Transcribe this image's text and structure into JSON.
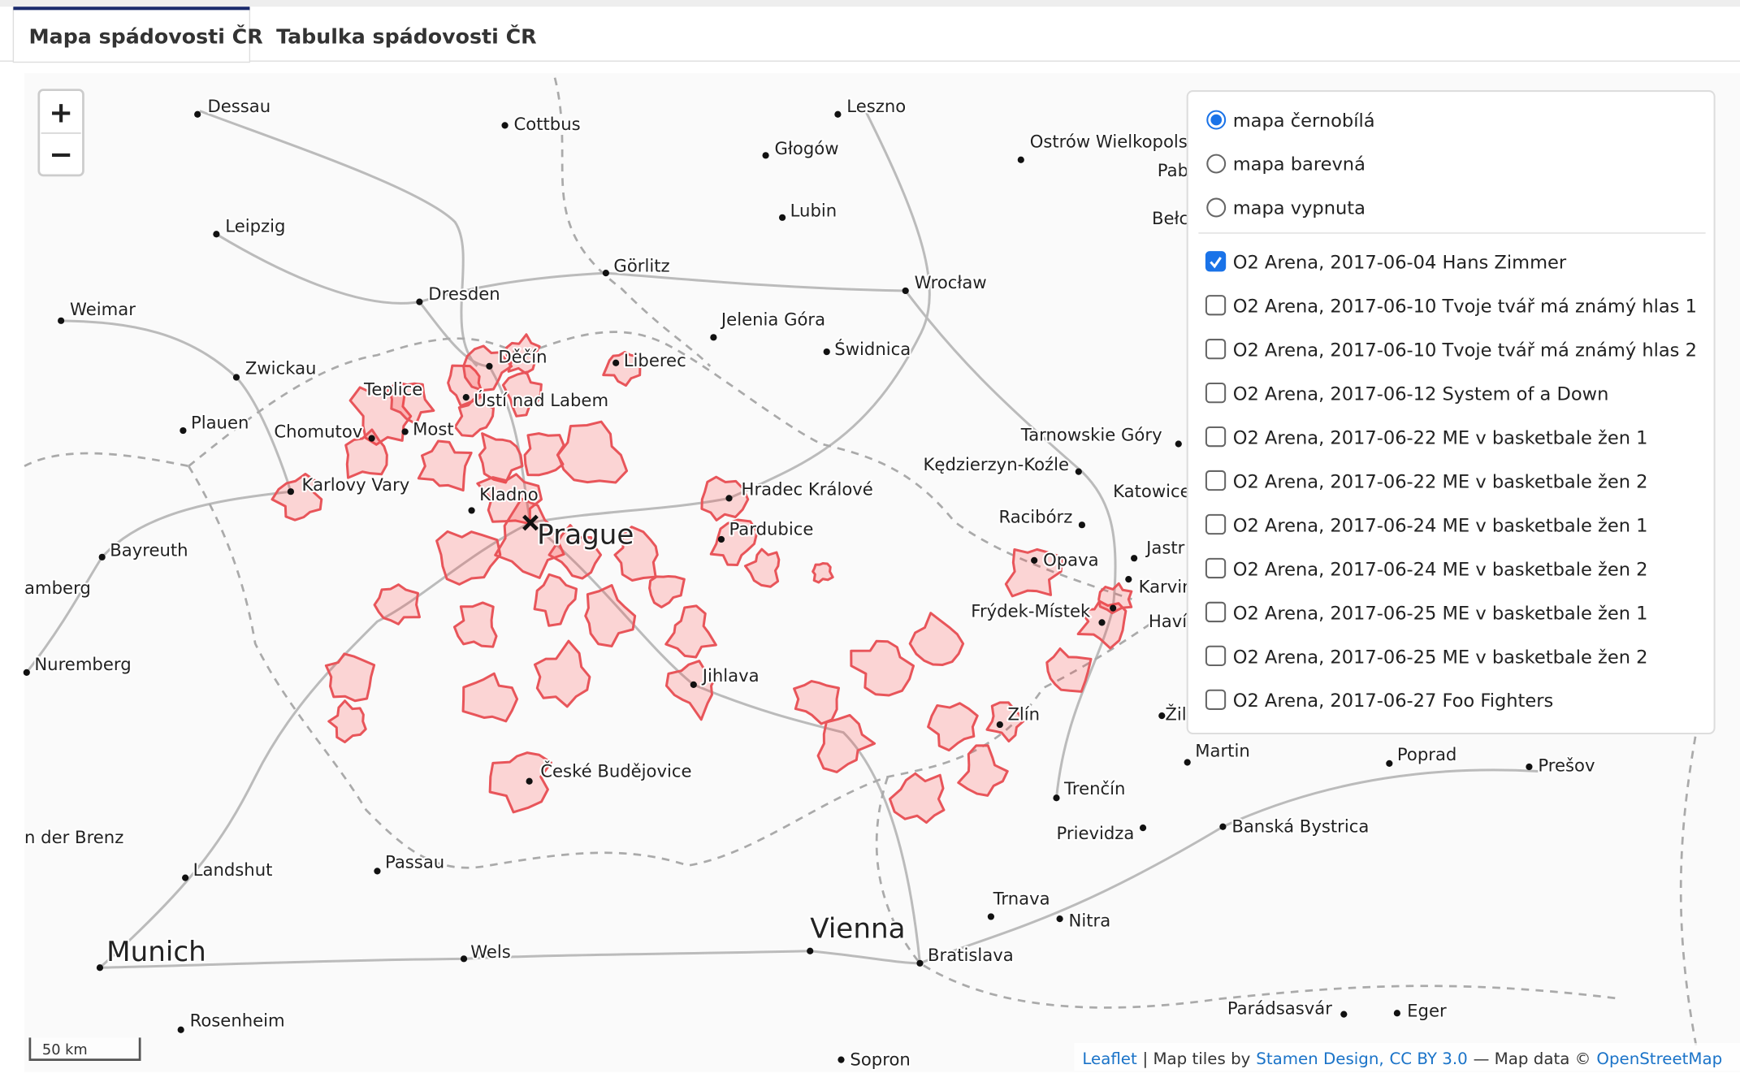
{
  "tabs": [
    "Mapa spádovosti ČR",
    "Tabulka spádovosti ČR"
  ],
  "zoom": [
    "+",
    "−"
  ],
  "base_layers": [
    {
      "label": "mapa černobílá",
      "selected": true
    },
    {
      "label": "mapa barevná",
      "selected": false
    },
    {
      "label": "mapa vypnuta",
      "selected": false
    }
  ],
  "overlays": [
    {
      "label": "O2 Arena, 2017-06-04 Hans Zimmer",
      "checked": true
    },
    {
      "label": "O2 Arena, 2017-06-10 Tvoje tvář má známý hlas 1",
      "checked": false
    },
    {
      "label": "O2 Arena, 2017-06-10 Tvoje tvář má známý hlas 2",
      "checked": false
    },
    {
      "label": "O2 Arena, 2017-06-12 System of a Down",
      "checked": false
    },
    {
      "label": "O2 Arena, 2017-06-22 ME v basketbale žen 1",
      "checked": false
    },
    {
      "label": "O2 Arena, 2017-06-22 ME v basketbale žen 2",
      "checked": false
    },
    {
      "label": "O2 Arena, 2017-06-24 ME v basketbale žen 1",
      "checked": false
    },
    {
      "label": "O2 Arena, 2017-06-24 ME v basketbale žen 2",
      "checked": false
    },
    {
      "label": "O2 Arena, 2017-06-25 ME v basketbale žen 1",
      "checked": false
    },
    {
      "label": "O2 Arena, 2017-06-25 ME v basketbale žen 2",
      "checked": false
    },
    {
      "label": "O2 Arena, 2017-06-27 Foo Fighters",
      "checked": false
    }
  ],
  "cities": [
    "Dessau",
    "Cottbus",
    "Leszno",
    "Głogów",
    "Ostrów Wielkopols",
    "Pab",
    "Lubin",
    "Leipzig",
    "Görlitz",
    "Bełc",
    "Dresden",
    "Wrocław",
    "Weimar",
    "Jelenia Góra",
    "Świdnica",
    "Zwickau",
    "Děčín",
    "Liberec",
    "Teplice",
    "Ústí nad Labem",
    "Plauen",
    "Chomutov",
    "Most",
    "Tarnowskie Góry",
    "Kędzierzyn-Koźle",
    "Karlovy Vary",
    "Kladno",
    "Hradec Králové",
    "Katowice",
    "Prague",
    "Racibórz",
    "Pardubice",
    "Bayreuth",
    "Opava",
    "Jastr",
    "amberg",
    "Karvin",
    "Frýdek-Místek",
    "Havířov",
    "Nuremberg",
    "Jihlava",
    "Zlín",
    "Žil",
    "Martin",
    "Poprad",
    "Prešov",
    "České Budějovice",
    "Trenčín",
    "Prievidza",
    "Banská Bystrica",
    "n der Brenz",
    "Landshut",
    "Passau",
    "Trnava",
    "Nitra",
    "Vienna",
    "Munich",
    "Wels",
    "Bratislava",
    "Parádsasvár",
    "Eger",
    "Rosenheim",
    "Sopron"
  ],
  "scale": "50 km",
  "attribution": [
    {
      "text": "Leaflet",
      "link": true
    },
    {
      "text": "| Map tiles by",
      "link": false
    },
    {
      "text": "Stamen Design,",
      "link": true
    },
    {
      "text": "CC BY 3.0",
      "link": true
    },
    {
      "text": "— Map data ©",
      "link": false
    },
    {
      "text": "OpenStreetMap",
      "link": true
    }
  ]
}
